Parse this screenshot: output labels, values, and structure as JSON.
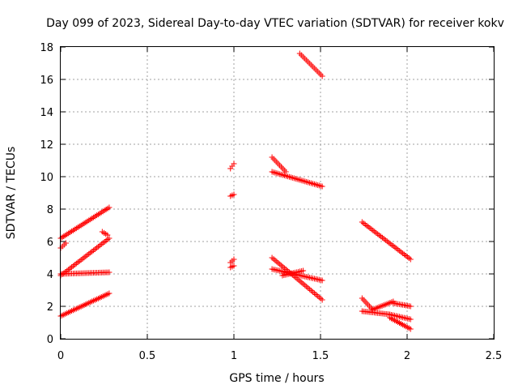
{
  "chart_data": {
    "type": "scatter",
    "title": "Day 099 of 2023, Sidereal Day-to-day VTEC variation (SDTVAR) for receiver kokv",
    "xlabel": "GPS time / hours",
    "ylabel": "SDTVAR / TECUs",
    "xlim": [
      0,
      2.5
    ],
    "ylim": [
      0,
      18
    ],
    "xticks": [
      "0",
      "0.5",
      "1",
      "1.5",
      "2",
      "2.5"
    ],
    "yticks": [
      "0",
      "2",
      "4",
      "6",
      "8",
      "10",
      "12",
      "14",
      "16",
      "18"
    ],
    "grid": true,
    "marker": "+",
    "marker_color": "#ff0000",
    "segments": [
      {
        "x_start": 0.0,
        "x_end": 0.28,
        "y_start": 6.2,
        "y_end": 8.1
      },
      {
        "x_start": 0.0,
        "x_end": 0.28,
        "y_start": 3.9,
        "y_end": 6.2
      },
      {
        "x_start": 0.0,
        "x_end": 0.28,
        "y_start": 4.0,
        "y_end": 4.1
      },
      {
        "x_start": 0.0,
        "x_end": 0.28,
        "y_start": 1.4,
        "y_end": 2.8
      },
      {
        "x_start": 0.0,
        "x_end": 0.03,
        "y_start": 5.6,
        "y_end": 5.9
      },
      {
        "x_start": 0.24,
        "x_end": 0.27,
        "y_start": 6.6,
        "y_end": 6.4
      },
      {
        "x_start": 0.98,
        "x_end": 1.0,
        "y_start": 10.5,
        "y_end": 10.8
      },
      {
        "x_start": 0.98,
        "x_end": 1.0,
        "y_start": 8.8,
        "y_end": 8.9
      },
      {
        "x_start": 0.98,
        "x_end": 1.0,
        "y_start": 4.7,
        "y_end": 4.9
      },
      {
        "x_start": 0.98,
        "x_end": 1.0,
        "y_start": 4.4,
        "y_end": 4.5
      },
      {
        "x_start": 1.22,
        "x_end": 1.3,
        "y_start": 11.2,
        "y_end": 10.3
      },
      {
        "x_start": 1.22,
        "x_end": 1.51,
        "y_start": 10.3,
        "y_end": 9.4
      },
      {
        "x_start": 1.38,
        "x_end": 1.51,
        "y_start": 17.6,
        "y_end": 16.2
      },
      {
        "x_start": 1.22,
        "x_end": 1.51,
        "y_start": 5.0,
        "y_end": 2.4
      },
      {
        "x_start": 1.22,
        "x_end": 1.51,
        "y_start": 4.3,
        "y_end": 3.6
      },
      {
        "x_start": 1.28,
        "x_end": 1.4,
        "y_start": 3.9,
        "y_end": 4.2
      },
      {
        "x_start": 1.74,
        "x_end": 2.02,
        "y_start": 7.2,
        "y_end": 4.9
      },
      {
        "x_start": 1.74,
        "x_end": 1.8,
        "y_start": 2.5,
        "y_end": 1.8
      },
      {
        "x_start": 1.8,
        "x_end": 1.92,
        "y_start": 1.8,
        "y_end": 2.3
      },
      {
        "x_start": 1.92,
        "x_end": 2.02,
        "y_start": 2.2,
        "y_end": 2.0
      },
      {
        "x_start": 1.74,
        "x_end": 1.9,
        "y_start": 1.7,
        "y_end": 1.5
      },
      {
        "x_start": 1.9,
        "x_end": 2.02,
        "y_start": 1.5,
        "y_end": 1.2
      },
      {
        "x_start": 1.9,
        "x_end": 2.02,
        "y_start": 1.3,
        "y_end": 0.6
      }
    ]
  }
}
